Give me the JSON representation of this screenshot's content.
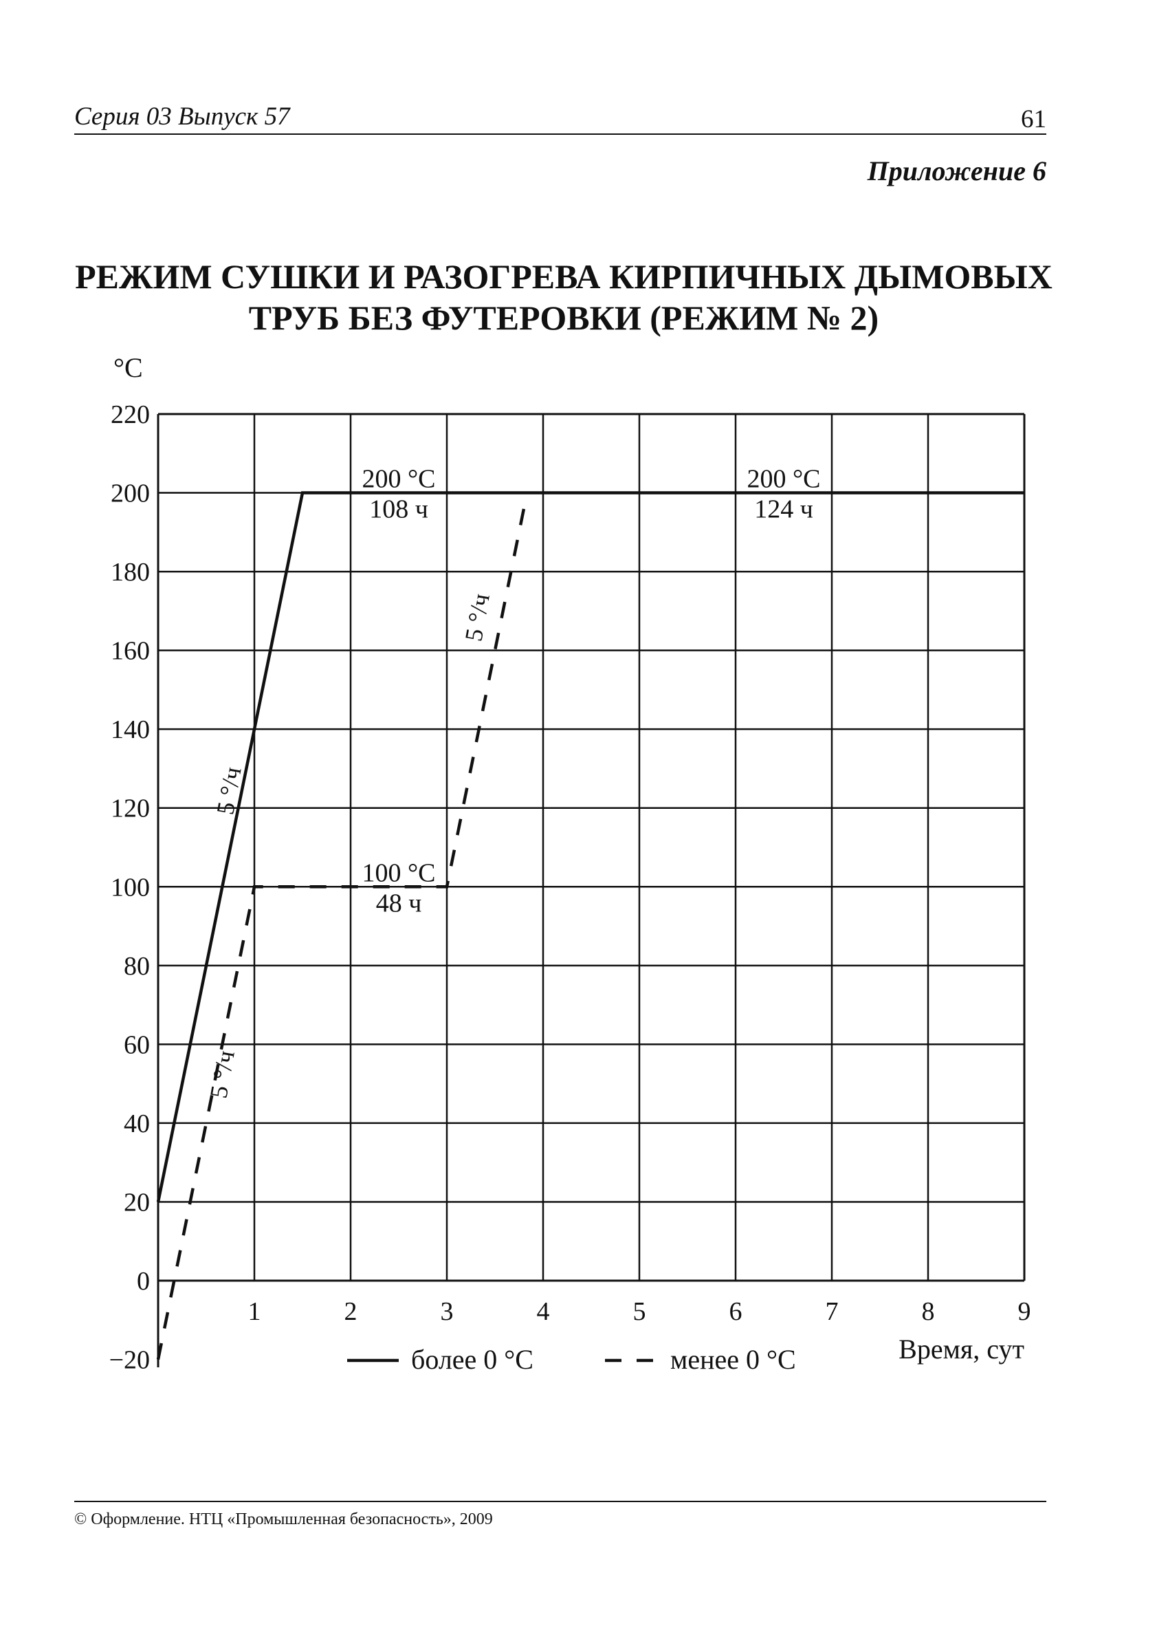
{
  "header": {
    "series": "Серия 03  Выпуск 57",
    "page_number": "61",
    "appendix": "Приложение 6"
  },
  "title_lines": [
    "РЕЖИМ СУШКИ И РАЗОГРЕВА КИРПИЧНЫХ ДЫМОВЫХ",
    "ТРУБ БЕЗ ФУТЕРОВКИ (РЕЖИМ № 2)"
  ],
  "footer": "©  Оформление. НТЦ «Промышленная безопасность», 2009",
  "chart_data": {
    "type": "line",
    "ylabel": "°C",
    "xlabel": "Время, сут",
    "xlim": [
      0,
      9
    ],
    "ylim": [
      0,
      220
    ],
    "grid": true,
    "x_ticks": [
      "1",
      "2",
      "3",
      "4",
      "5",
      "6",
      "7",
      "8",
      "9"
    ],
    "y_ticks": [
      "220",
      "200",
      "180",
      "160",
      "140",
      "120",
      "100",
      "80",
      "60",
      "40",
      "20",
      "0",
      "−20"
    ],
    "series": [
      {
        "name": "более 0 °С",
        "style": "solid",
        "points": [
          [
            0,
            20
          ],
          [
            1.5,
            200
          ],
          [
            9,
            200
          ]
        ]
      },
      {
        "name": "менее 0 °С",
        "style": "dashed",
        "points": [
          [
            0,
            -20
          ],
          [
            1,
            100
          ],
          [
            3,
            100
          ],
          [
            3.8,
            196
          ]
        ]
      }
    ],
    "annotations": [
      {
        "top": "200 °С",
        "bottom": "108 ч",
        "x": [
          2,
          3
        ],
        "y": 200
      },
      {
        "top": "200 °С",
        "bottom": "124 ч",
        "x": [
          6,
          7
        ],
        "y": 200
      },
      {
        "top": "100 °С",
        "bottom": "48 ч",
        "x": [
          2,
          3
        ],
        "y": 100
      },
      {
        "text": "5 °/ч",
        "x": 0.82,
        "y": 124,
        "rotate": -80
      },
      {
        "text": "5 °/ч",
        "x": 0.75,
        "y": 52,
        "rotate": -80
      },
      {
        "text": "5 °/ч",
        "x": 3.4,
        "y": 168,
        "rotate": -80
      }
    ],
    "legend": [
      {
        "label": "более 0 °С",
        "style": "solid"
      },
      {
        "label": "менее 0 °С",
        "style": "dashed"
      }
    ],
    "legend_placement": "bottom"
  }
}
